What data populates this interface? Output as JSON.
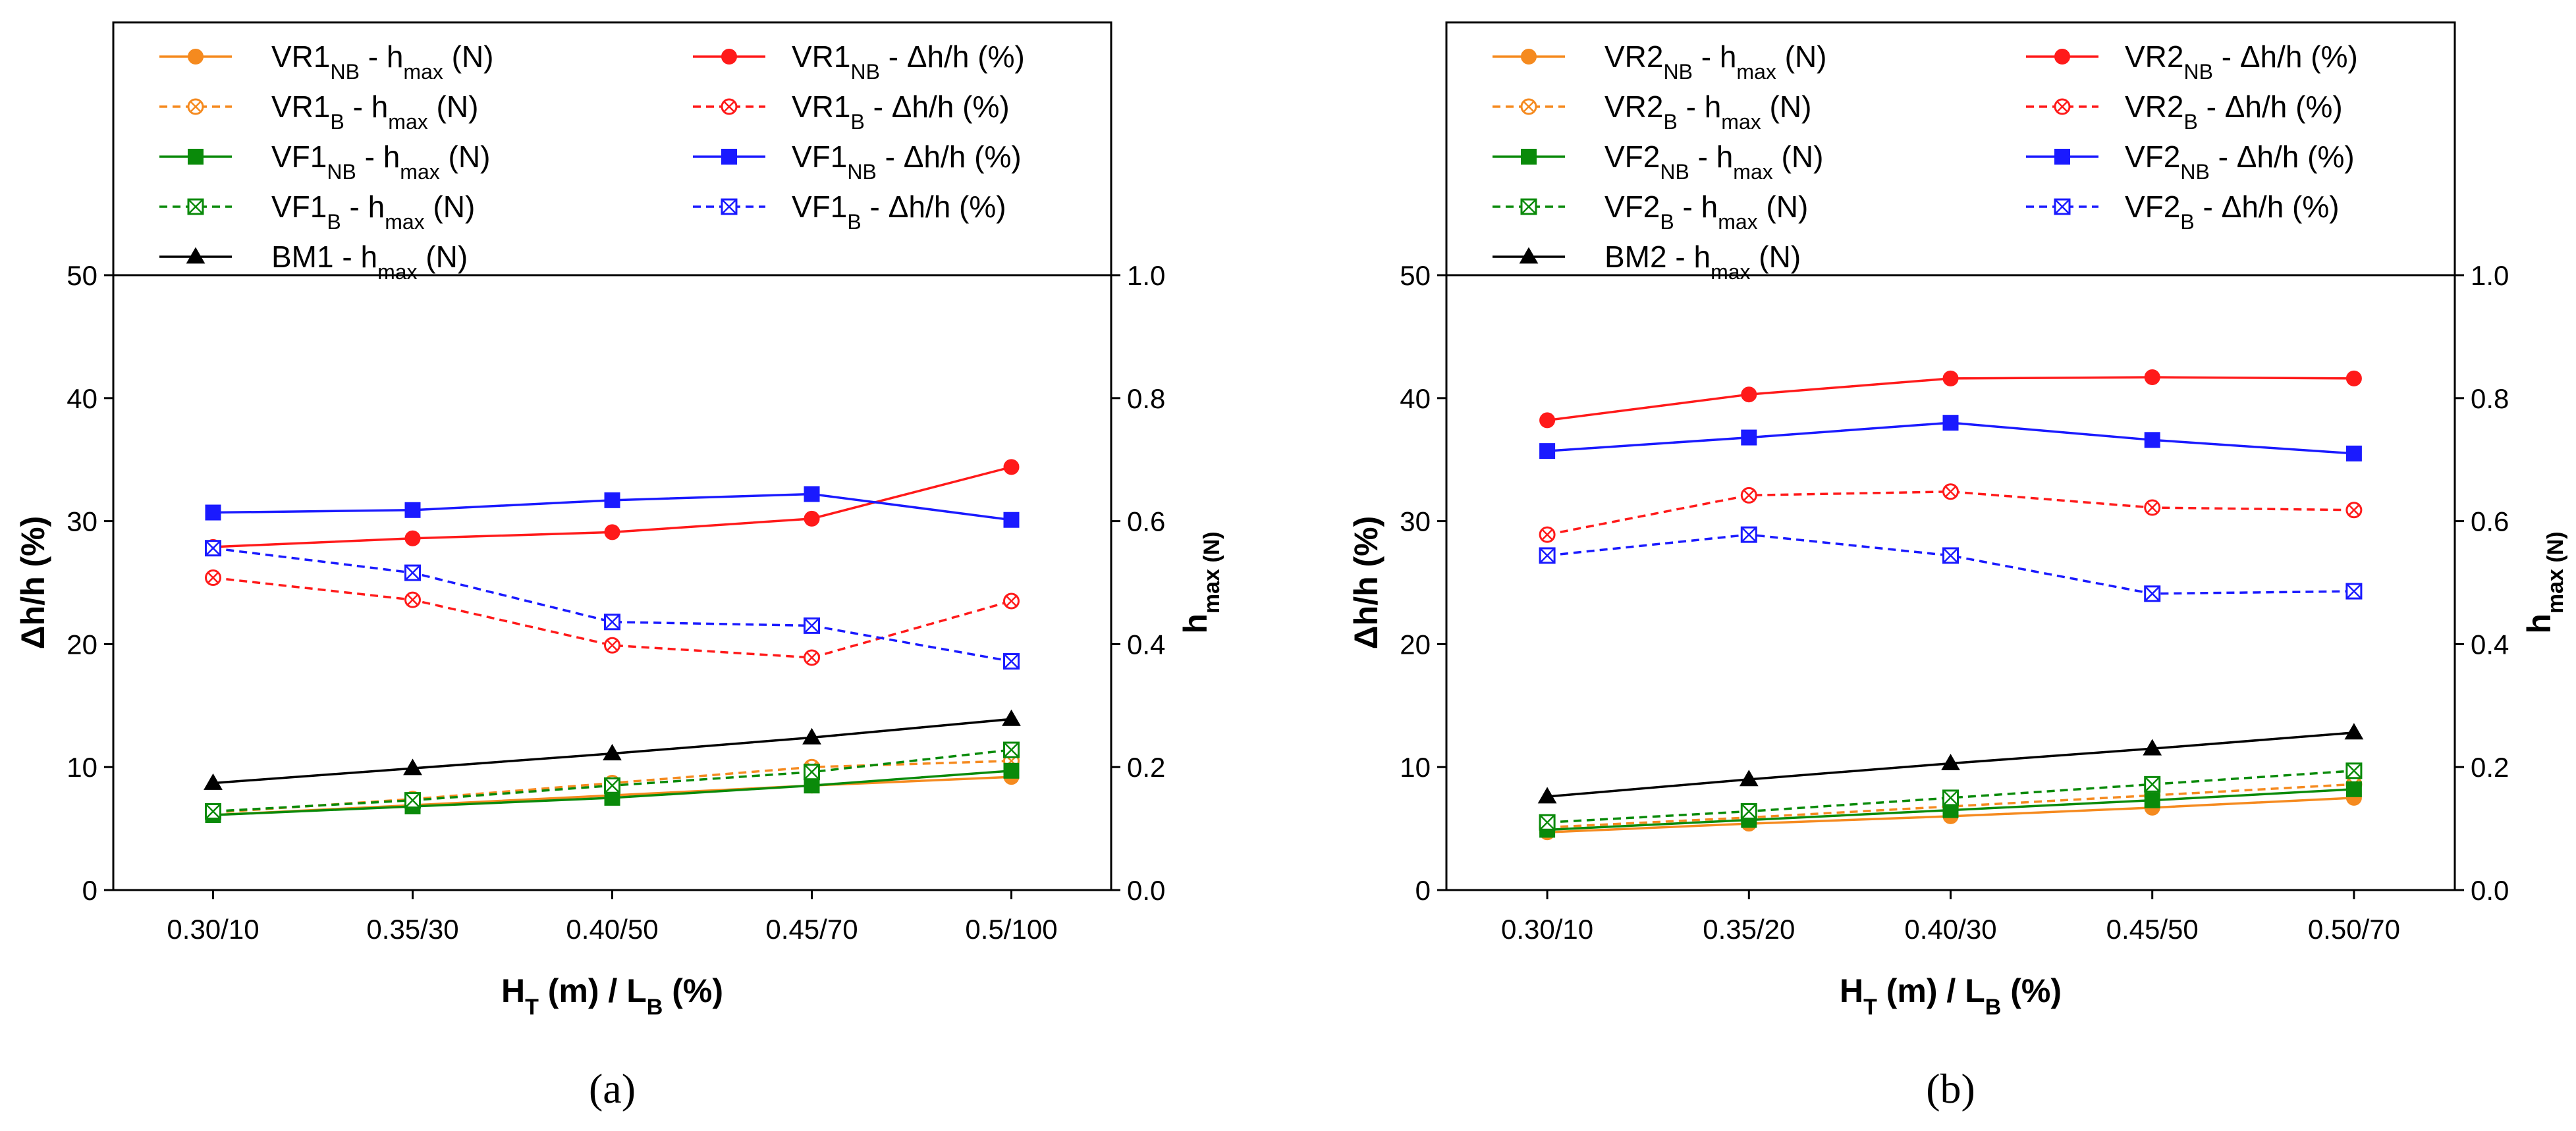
{
  "chart_data": [
    {
      "type": "line",
      "panel_label": "(a)",
      "categories": [
        "0.30/10",
        "0.35/30",
        "0.40/50",
        "0.45/70",
        "0.5/100"
      ],
      "xlabel": {
        "main": "H",
        "sub": "T",
        "tail": " (m) / L",
        "sub2": "B",
        "tail2": " (%)"
      },
      "ylabel_left": "Δh/h (%)",
      "ylabel_right": {
        "main": "h",
        "sub": "max",
        "unit": " (N)"
      },
      "ylim_left": [
        0,
        50
      ],
      "ylim_right": [
        0,
        1.0
      ],
      "left_ticks": [
        "0",
        "10",
        "20",
        "30",
        "40",
        "50"
      ],
      "right_ticks": [
        "0.0",
        "0.2",
        "0.4",
        "0.6",
        "0.8",
        "1.0"
      ],
      "grid": false,
      "legend_position": "top",
      "series": [
        {
          "name": "VR1NB - hmax (N)",
          "label": {
            "pre": "VR1",
            "sub": "NB",
            "mid": " - h",
            "sub2": "max",
            "post": " (N)"
          },
          "axis": "right",
          "color": "#F58A1F",
          "dash": false,
          "marker": "circle",
          "values": [
            0.122,
            0.138,
            0.154,
            0.17,
            0.184
          ]
        },
        {
          "name": "VR1B - hmax (N)",
          "label": {
            "pre": "VR1",
            "sub": "B",
            "mid": "  - h",
            "sub2": "max",
            "post": " (N)"
          },
          "axis": "right",
          "color": "#F58A1F",
          "dash": true,
          "marker": "xcircle",
          "values": [
            0.126,
            0.148,
            0.174,
            0.2,
            0.21
          ]
        },
        {
          "name": "VF1NB - hmax (N)",
          "label": {
            "pre": "VF1",
            "sub": "NB",
            "mid": " - h",
            "sub2": "max",
            "post": " (N)"
          },
          "axis": "right",
          "color": "#0A8A0A",
          "dash": false,
          "marker": "square",
          "values": [
            0.122,
            0.136,
            0.15,
            0.17,
            0.194
          ]
        },
        {
          "name": "VF1B - hmax (N)",
          "label": {
            "pre": "VF1",
            "sub": "B",
            "mid": "  - h",
            "sub2": "max",
            "post": " (N)"
          },
          "axis": "right",
          "color": "#0A8A0A",
          "dash": true,
          "marker": "xsquare",
          "values": [
            0.128,
            0.146,
            0.17,
            0.192,
            0.228
          ]
        },
        {
          "name": "BM1 - hmax (N)",
          "label": {
            "pre": "BM1",
            "sub": "",
            "mid": " - h",
            "sub2": "max",
            "post": " (N)"
          },
          "axis": "right",
          "color": "#000000",
          "dash": false,
          "marker": "triangle",
          "values": [
            0.174,
            0.198,
            0.222,
            0.248,
            0.278
          ]
        },
        {
          "name": "VR1NB - Δh/h (%)",
          "label": {
            "pre": "VR1",
            "sub": "NB",
            "mid": " - Δh/h (%)",
            "sub2": "",
            "post": ""
          },
          "axis": "left",
          "color": "#FF1A1A",
          "dash": false,
          "marker": "circle",
          "values": [
            27.9,
            28.6,
            29.1,
            30.2,
            34.4
          ]
        },
        {
          "name": "VR1B - Δh/h (%)",
          "label": {
            "pre": "VR1",
            "sub": "B",
            "mid": "  - Δh/h (%)",
            "sub2": "",
            "post": ""
          },
          "axis": "left",
          "color": "#FF1A1A",
          "dash": true,
          "marker": "xcircle",
          "values": [
            25.4,
            23.6,
            19.9,
            18.9,
            23.5
          ]
        },
        {
          "name": "VF1NB - Δh/h (%)",
          "label": {
            "pre": "VF1",
            "sub": "NB",
            "mid": " - Δh/h (%)",
            "sub2": "",
            "post": ""
          },
          "axis": "left",
          "color": "#1A1AFF",
          "dash": false,
          "marker": "square",
          "values": [
            30.7,
            30.9,
            31.7,
            32.2,
            30.1
          ]
        },
        {
          "name": "VF1B - Δh/h (%)",
          "label": {
            "pre": "VF1",
            "sub": "B",
            "mid": "  - Δh/h (%)",
            "sub2": "",
            "post": ""
          },
          "axis": "left",
          "color": "#1A1AFF",
          "dash": true,
          "marker": "xsquare",
          "values": [
            27.8,
            25.8,
            21.8,
            21.5,
            18.6
          ]
        }
      ]
    },
    {
      "type": "line",
      "panel_label": "(b)",
      "categories": [
        "0.30/10",
        "0.35/20",
        "0.40/30",
        "0.45/50",
        "0.50/70"
      ],
      "xlabel": {
        "main": "H",
        "sub": "T",
        "tail": " (m) / L",
        "sub2": "B",
        "tail2": " (%)"
      },
      "ylabel_left": "Δh/h (%)",
      "ylabel_right": {
        "main": "h",
        "sub": "max",
        "unit": " (N)"
      },
      "ylim_left": [
        0,
        50
      ],
      "ylim_right": [
        0,
        1.0
      ],
      "left_ticks": [
        "0",
        "10",
        "20",
        "30",
        "40",
        "50"
      ],
      "right_ticks": [
        "0.0",
        "0.2",
        "0.4",
        "0.6",
        "0.8",
        "1.0"
      ],
      "grid": false,
      "legend_position": "top",
      "series": [
        {
          "name": "VR2NB - hmax (N)",
          "label": {
            "pre": "VR2",
            "sub": "NB",
            "mid": " - h",
            "sub2": "max",
            "post": " (N)"
          },
          "axis": "right",
          "color": "#F58A1F",
          "dash": false,
          "marker": "circle",
          "values": [
            0.094,
            0.108,
            0.12,
            0.134,
            0.15
          ]
        },
        {
          "name": "VR2B - hmax (N)",
          "label": {
            "pre": "VR2",
            "sub": "B",
            "mid": "  - h",
            "sub2": "max",
            "post": " (N)"
          },
          "axis": "right",
          "color": "#F58A1F",
          "dash": true,
          "marker": "xcircle",
          "values": [
            0.102,
            0.118,
            0.136,
            0.154,
            0.172
          ]
        },
        {
          "name": "VF2NB - hmax (N)",
          "label": {
            "pre": "VF2",
            "sub": "NB",
            "mid": " - h",
            "sub2": "max",
            "post": " (N)"
          },
          "axis": "right",
          "color": "#0A8A0A",
          "dash": false,
          "marker": "square",
          "values": [
            0.098,
            0.114,
            0.13,
            0.146,
            0.164
          ]
        },
        {
          "name": "VF2B - hmax (N)",
          "label": {
            "pre": "VF2",
            "sub": "B",
            "mid": "  - h",
            "sub2": "max",
            "post": " (N)"
          },
          "axis": "right",
          "color": "#0A8A0A",
          "dash": true,
          "marker": "xsquare",
          "values": [
            0.11,
            0.128,
            0.15,
            0.172,
            0.194
          ]
        },
        {
          "name": "BM2 - hmax (N)",
          "label": {
            "pre": "BM2",
            "sub": "",
            "mid": " - h",
            "sub2": "max",
            "post": " (N)"
          },
          "axis": "right",
          "color": "#000000",
          "dash": false,
          "marker": "triangle",
          "values": [
            0.152,
            0.18,
            0.206,
            0.23,
            0.256
          ]
        },
        {
          "name": "VR2NB - Δh/h (%)",
          "label": {
            "pre": "VR2",
            "sub": "NB",
            "mid": " - Δh/h (%)",
            "sub2": "",
            "post": ""
          },
          "axis": "left",
          "color": "#FF1A1A",
          "dash": false,
          "marker": "circle",
          "values": [
            38.2,
            40.3,
            41.6,
            41.7,
            41.6
          ]
        },
        {
          "name": "VR2B - Δh/h (%)",
          "label": {
            "pre": "VR2",
            "sub": "B",
            "mid": "  - Δh/h (%)",
            "sub2": "",
            "post": ""
          },
          "axis": "left",
          "color": "#FF1A1A",
          "dash": true,
          "marker": "xcircle",
          "values": [
            28.9,
            32.1,
            32.4,
            31.1,
            30.9
          ]
        },
        {
          "name": "VF2NB - Δh/h (%)",
          "label": {
            "pre": "VF2",
            "sub": "NB",
            "mid": " - Δh/h (%)",
            "sub2": "",
            "post": ""
          },
          "axis": "left",
          "color": "#1A1AFF",
          "dash": false,
          "marker": "square",
          "values": [
            35.7,
            36.8,
            38.0,
            36.6,
            35.5
          ]
        },
        {
          "name": "VF2B - Δh/h (%)",
          "label": {
            "pre": "VF2",
            "sub": "B",
            "mid": "  - Δh/h (%)",
            "sub2": "",
            "post": ""
          },
          "axis": "left",
          "color": "#1A1AFF",
          "dash": true,
          "marker": "xsquare",
          "values": [
            27.2,
            28.9,
            27.2,
            24.1,
            24.3
          ]
        }
      ]
    }
  ]
}
